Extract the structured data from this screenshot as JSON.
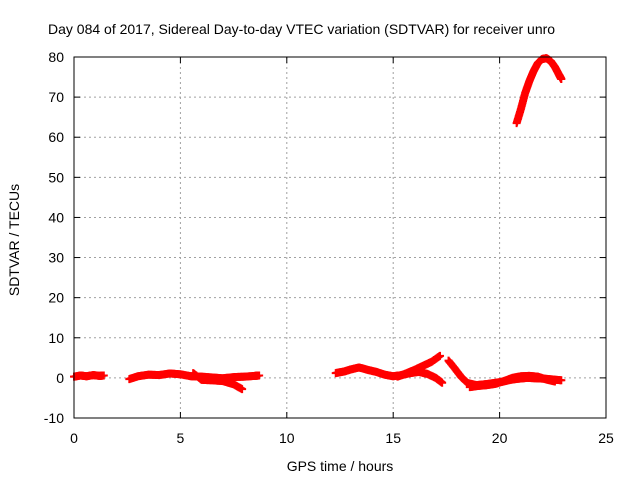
{
  "chart_data": {
    "type": "scatter",
    "title": "Day 084 of 2017, Sidereal Day-to-day VTEC variation (SDTVAR) for receiver unro",
    "xlabel": "GPS time / hours",
    "ylabel": "SDTVAR / TECUs",
    "xlim": [
      0,
      25
    ],
    "ylim": [
      -10,
      80
    ],
    "xticks": [
      0,
      5,
      10,
      15,
      20,
      25
    ],
    "yticks": [
      -10,
      0,
      10,
      20,
      30,
      40,
      50,
      60,
      70,
      80
    ],
    "grid": true,
    "marker": "+",
    "color": "#ff0000",
    "series": [
      {
        "name": "seg1",
        "points": [
          [
            0.0,
            0.3
          ],
          [
            0.3,
            0.6
          ],
          [
            0.6,
            0.4
          ],
          [
            0.9,
            0.7
          ],
          [
            1.2,
            0.5
          ],
          [
            1.4,
            0.6
          ]
        ]
      },
      {
        "name": "seg2",
        "points": [
          [
            2.6,
            -0.3
          ],
          [
            3.0,
            0.4
          ],
          [
            3.5,
            0.8
          ],
          [
            4.0,
            0.7
          ],
          [
            4.5,
            1.1
          ],
          [
            5.0,
            0.9
          ],
          [
            5.5,
            0.4
          ],
          [
            6.0,
            0.3
          ],
          [
            6.5,
            0.1
          ],
          [
            7.0,
            -0.1
          ],
          [
            7.5,
            0.2
          ],
          [
            8.0,
            0.3
          ],
          [
            8.5,
            0.5
          ],
          [
            8.7,
            0.6
          ]
        ]
      },
      {
        "name": "seg2b",
        "points": [
          [
            5.6,
            1.2
          ],
          [
            6.0,
            -0.5
          ],
          [
            6.5,
            -0.6
          ],
          [
            7.0,
            -0.8
          ],
          [
            7.5,
            -1.6
          ],
          [
            7.9,
            -2.8
          ]
        ]
      },
      {
        "name": "seg3",
        "points": [
          [
            12.3,
            1.2
          ],
          [
            12.7,
            1.6
          ],
          [
            13.0,
            2.1
          ],
          [
            13.4,
            2.6
          ],
          [
            13.8,
            2.0
          ],
          [
            14.2,
            1.5
          ],
          [
            14.6,
            0.8
          ],
          [
            15.0,
            0.4
          ],
          [
            15.4,
            0.7
          ],
          [
            15.8,
            1.2
          ],
          [
            16.2,
            1.5
          ],
          [
            16.6,
            1.0
          ],
          [
            17.0,
            0.0
          ],
          [
            17.3,
            -1.2
          ]
        ]
      },
      {
        "name": "seg3b",
        "points": [
          [
            15.2,
            0.3
          ],
          [
            15.6,
            1.1
          ],
          [
            16.0,
            2.0
          ],
          [
            16.4,
            3.0
          ],
          [
            16.8,
            4.0
          ],
          [
            17.2,
            5.5
          ]
        ]
      },
      {
        "name": "seg4",
        "points": [
          [
            17.6,
            4.3
          ],
          [
            17.9,
            2.3
          ],
          [
            18.2,
            0.2
          ],
          [
            18.5,
            -1.3
          ],
          [
            18.9,
            -1.8
          ],
          [
            19.3,
            -1.6
          ],
          [
            19.7,
            -1.3
          ],
          [
            20.1,
            -1.0
          ],
          [
            20.5,
            -0.5
          ],
          [
            20.9,
            -0.2
          ],
          [
            21.3,
            0.0
          ],
          [
            21.7,
            -0.1
          ],
          [
            22.1,
            -0.2
          ],
          [
            22.5,
            -0.4
          ],
          [
            22.9,
            -0.6
          ]
        ]
      },
      {
        "name": "seg4b",
        "points": [
          [
            18.6,
            -2.3
          ],
          [
            19.0,
            -2.0
          ],
          [
            19.4,
            -1.8
          ],
          [
            19.8,
            -1.5
          ],
          [
            20.2,
            -0.8
          ],
          [
            20.6,
            0.0
          ],
          [
            21.0,
            0.4
          ],
          [
            21.4,
            0.5
          ],
          [
            21.8,
            0.3
          ],
          [
            22.2,
            -0.4
          ],
          [
            22.6,
            -0.9
          ]
        ]
      },
      {
        "name": "seg5",
        "points": [
          [
            20.8,
            63.5
          ],
          [
            21.0,
            67.0
          ],
          [
            21.2,
            71.0
          ],
          [
            21.4,
            74.0
          ],
          [
            21.6,
            76.5
          ],
          [
            21.8,
            78.5
          ],
          [
            22.0,
            79.5
          ],
          [
            22.2,
            79.7
          ],
          [
            22.4,
            79.0
          ],
          [
            22.6,
            77.5
          ],
          [
            22.8,
            75.5
          ],
          [
            22.9,
            74.5
          ]
        ]
      }
    ]
  }
}
